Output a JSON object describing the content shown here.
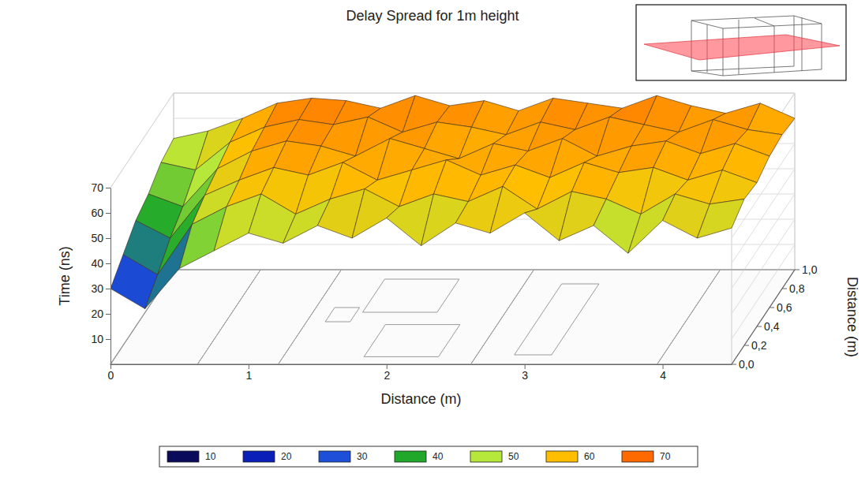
{
  "chart_data": {
    "type": "surface",
    "title": "Delay Spread for 1m height",
    "xlabel": "Distance (m)",
    "ylabel": "Distance (m)",
    "zlabel": "Time (ns)",
    "x": [
      0,
      0.25,
      0.5,
      0.75,
      1,
      1.25,
      1.5,
      1.75,
      2,
      2.25,
      2.5,
      2.75,
      3,
      3.25,
      3.5,
      3.75,
      4,
      4.25,
      4.5
    ],
    "y": [
      0,
      0.2,
      0.4,
      0.6,
      0.8,
      1.0
    ],
    "values": [
      [
        30,
        22,
        38,
        45,
        52,
        48,
        55,
        50,
        58,
        47,
        56,
        52,
        60,
        49,
        55,
        44,
        57,
        50,
        54
      ],
      [
        36,
        28,
        48,
        55,
        60,
        52,
        58,
        62,
        55,
        60,
        57,
        63,
        54,
        61,
        58,
        52,
        60,
        56,
        58
      ],
      [
        42,
        35,
        52,
        58,
        63,
        60,
        65,
        58,
        62,
        66,
        60,
        64,
        59,
        65,
        61,
        63,
        58,
        62,
        57
      ],
      [
        45,
        40,
        55,
        62,
        66,
        64,
        60,
        67,
        63,
        59,
        65,
        62,
        67,
        60,
        64,
        66,
        61,
        65,
        60
      ],
      [
        50,
        47,
        58,
        64,
        67,
        65,
        68,
        62,
        66,
        64,
        61,
        66,
        63,
        68,
        65,
        62,
        67,
        63,
        61
      ],
      [
        52,
        55,
        60,
        66,
        68,
        67,
        64,
        69,
        65,
        67,
        63,
        68,
        66,
        64,
        69,
        65,
        62,
        66,
        60
      ]
    ],
    "xlim": [
      0,
      4.5
    ],
    "xticks": [
      0,
      1,
      2,
      3,
      4
    ],
    "ylim": [
      0,
      1.0
    ],
    "yticks": [
      {
        "value": 0,
        "label": "0,0"
      },
      {
        "value": 0.2,
        "label": "0,2"
      },
      {
        "value": 0.4,
        "label": "0,4"
      },
      {
        "value": 0.6,
        "label": "0,6"
      },
      {
        "value": 0.8,
        "label": "0,8"
      },
      {
        "value": 1.0,
        "label": "1,0"
      }
    ],
    "zlim": [
      0,
      70
    ],
    "zticks": [
      10,
      20,
      30,
      40,
      50,
      60,
      70
    ],
    "colorbar": {
      "ticks": [
        10,
        20,
        30,
        40,
        50,
        60,
        70
      ],
      "colors": [
        "#0b0b5c",
        "#0a1fb8",
        "#1d4fd8",
        "#1fa82a",
        "#b5e83a",
        "#ffbf00",
        "#ff6a00"
      ]
    }
  }
}
